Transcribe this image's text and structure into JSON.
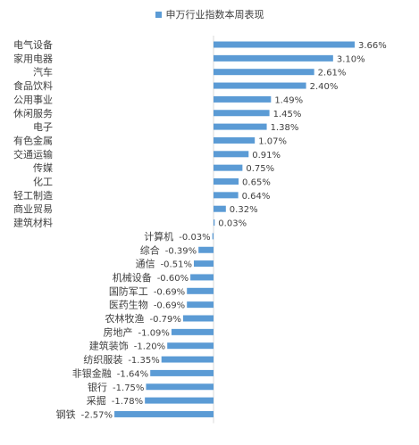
{
  "chart_data": {
    "type": "bar",
    "orientation": "horizontal",
    "legend_position": "top",
    "series": [
      {
        "name": "申万行业指数本周表现",
        "color": "#5b9bd5",
        "values": [
          3.66,
          3.1,
          2.61,
          2.4,
          1.49,
          1.45,
          1.38,
          1.07,
          0.91,
          0.75,
          0.65,
          0.64,
          0.32,
          0.03,
          -0.03,
          -0.39,
          -0.51,
          -0.6,
          -0.69,
          -0.69,
          -0.79,
          -1.09,
          -1.2,
          -1.35,
          -1.64,
          -1.75,
          -1.78,
          -2.57
        ]
      }
    ],
    "categories": [
      "电气设备",
      "家用电器",
      "汽车",
      "食品饮料",
      "公用事业",
      "休闲服务",
      "电子",
      "有色金属",
      "交通运输",
      "传媒",
      "化工",
      "轻工制造",
      "商业贸易",
      "建筑材料",
      "计算机",
      "综合",
      "通信",
      "机械设备",
      "国防军工",
      "医药生物",
      "农林牧渔",
      "房地产",
      "建筑装饰",
      "纺织服装",
      "非银金融",
      "银行",
      "采掘",
      "钢铁"
    ],
    "data_labels": [
      "3.66%",
      "3.10%",
      "2.61%",
      "2.40%",
      "1.49%",
      "1.45%",
      "1.38%",
      "1.07%",
      "0.91%",
      "0.75%",
      "0.65%",
      "0.64%",
      "0.32%",
      "0.03%",
      "-0.03%",
      "-0.39%",
      "-0.51%",
      "-0.60%",
      "-0.69%",
      "-0.69%",
      "-0.79%",
      "-1.09%",
      "-1.20%",
      "-1.35%",
      "-1.64%",
      "-1.75%",
      "-1.78%",
      "-2.57%"
    ],
    "title": "",
    "xlabel": "",
    "ylabel": "",
    "value_unit": "%",
    "xlim": [
      -3.2,
      3.66
    ],
    "grid": false
  }
}
